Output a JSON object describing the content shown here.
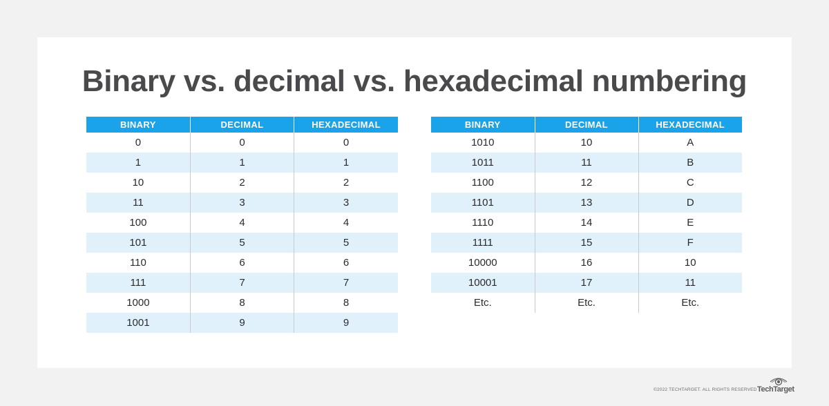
{
  "title": "Binary vs. decimal vs. hexadecimal numbering",
  "headers": [
    "BINARY",
    "DECIMAL",
    "HEXADECIMAL"
  ],
  "left_table": {
    "rows": [
      [
        "0",
        "0",
        "0"
      ],
      [
        "1",
        "1",
        "1"
      ],
      [
        "10",
        "2",
        "2"
      ],
      [
        "11",
        "3",
        "3"
      ],
      [
        "100",
        "4",
        "4"
      ],
      [
        "101",
        "5",
        "5"
      ],
      [
        "110",
        "6",
        "6"
      ],
      [
        "111",
        "7",
        "7"
      ],
      [
        "1000",
        "8",
        "8"
      ],
      [
        "1001",
        "9",
        "9"
      ]
    ]
  },
  "right_table": {
    "rows": [
      [
        "1010",
        "10",
        "A"
      ],
      [
        "1011",
        "11",
        "B"
      ],
      [
        "1100",
        "12",
        "C"
      ],
      [
        "1101",
        "13",
        "D"
      ],
      [
        "1110",
        "14",
        "E"
      ],
      [
        "1111",
        "15",
        "F"
      ],
      [
        "10000",
        "16",
        "10"
      ],
      [
        "10001",
        "17",
        "11"
      ],
      [
        "Etc.",
        "Etc.",
        "Etc."
      ]
    ]
  },
  "footer": {
    "copyright": "©2022 TECHTARGET. ALL RIGHTS RESERVED",
    "logo_text": "TechTarget",
    "logo_icon": "eye-icon"
  }
}
